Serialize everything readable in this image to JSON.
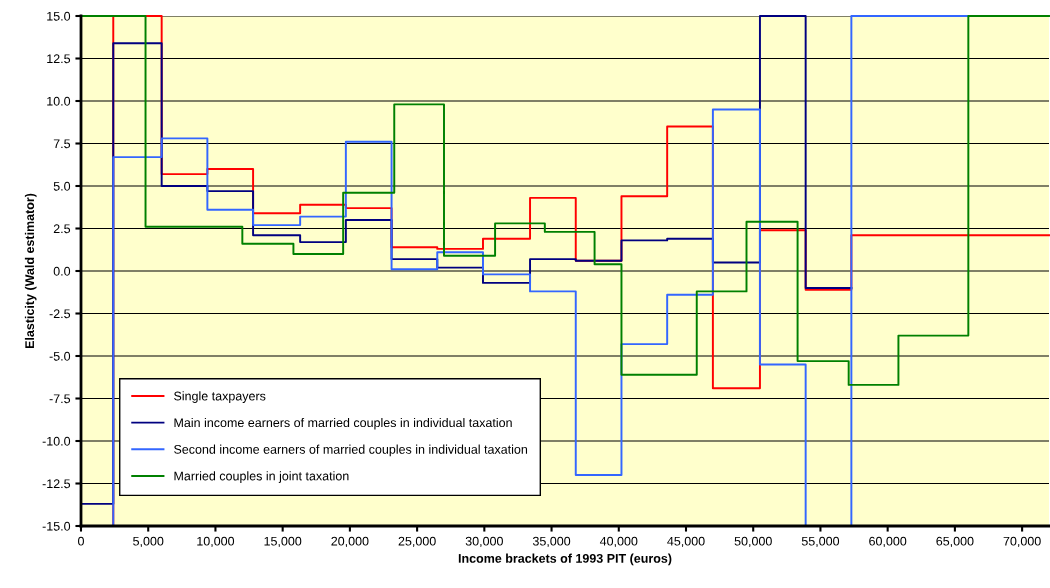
{
  "chart_data": {
    "type": "step",
    "xlabel": "Income brackets of 1993 PIT (euros)",
    "ylabel": "Elasticity (Wald estimator)",
    "series": [
      {
        "name": "Single taxpayers",
        "color": "#ff0000",
        "x": [
          0,
          2400,
          6000,
          9400,
          12800,
          16300,
          19700,
          23100,
          26500,
          29900,
          33400,
          36800,
          40200,
          43600,
          47000,
          50500,
          53900,
          57300,
          72000
        ],
        "values": [
          -15,
          15,
          5.7,
          6.0,
          3.4,
          3.9,
          3.7,
          1.4,
          1.3,
          1.9,
          4.3,
          0.6,
          4.4,
          8.5,
          -6.9,
          2.4,
          -1.1,
          2.1,
          2.1
        ]
      },
      {
        "name": "Main income earners of married couples in individual taxation",
        "color": "#000080",
        "x": [
          0,
          2400,
          6000,
          9400,
          12800,
          16300,
          19700,
          23100,
          26500,
          29900,
          33400,
          36800,
          40200,
          43600,
          47000,
          50500,
          53900,
          57300
        ],
        "values": [
          -13.7,
          13.4,
          5.0,
          4.7,
          2.1,
          1.7,
          3.0,
          0.7,
          0.2,
          -0.7,
          0.7,
          0.6,
          1.8,
          1.9,
          0.5,
          15,
          -1.0,
          -1.0
        ]
      },
      {
        "name": "Second income earners of married couples in individual taxation",
        "color": "#3366ff",
        "x": [
          0,
          2400,
          6000,
          9400,
          12800,
          16300,
          19700,
          23100,
          26500,
          29900,
          33400,
          36800,
          40200,
          43600,
          47000,
          50500,
          53900,
          57300,
          66000
        ],
        "values": [
          -15,
          6.7,
          7.8,
          3.6,
          2.7,
          3.2,
          7.6,
          0.1,
          1.1,
          -0.2,
          -1.2,
          -12.0,
          -4.3,
          -1.4,
          9.5,
          -5.5,
          -15,
          15,
          15
        ]
      },
      {
        "name": "Married couples in joint taxation",
        "color": "#008000",
        "x": [
          0,
          4800,
          12000,
          15800,
          19500,
          23300,
          27000,
          30800,
          34500,
          38200,
          40200,
          45800,
          49500,
          53300,
          57100,
          60800,
          66000,
          72000
        ],
        "values": [
          15,
          2.6,
          1.6,
          1.0,
          4.6,
          9.8,
          0.9,
          2.8,
          2.3,
          0.4,
          -6.1,
          -1.2,
          2.9,
          -5.3,
          -6.7,
          -3.8,
          15,
          15
        ]
      }
    ],
    "xlim": [
      0,
      72000
    ],
    "xticks": [
      0,
      {
        "value": 5000,
        "label": "5,000"
      },
      {
        "value": 10000,
        "label": "10,000"
      },
      {
        "value": 15000,
        "label": "15,000"
      },
      {
        "value": 20000,
        "label": "20,000"
      },
      {
        "value": 25000,
        "label": "25,000"
      },
      {
        "value": 30000,
        "label": "30,000"
      },
      {
        "value": 35000,
        "label": "35,000"
      },
      {
        "value": 40000,
        "label": "40,000"
      },
      {
        "value": 45000,
        "label": "45,000"
      },
      {
        "value": 50000,
        "label": "50,000"
      },
      {
        "value": 55000,
        "label": "55,000"
      },
      {
        "value": 60000,
        "label": "60,000"
      },
      {
        "value": 65000,
        "label": "65,000"
      },
      {
        "value": 70000,
        "label": "70,000"
      }
    ],
    "ylim": [
      -15,
      15
    ],
    "yticks": [
      {
        "value": -15,
        "label": "-15.0"
      },
      {
        "value": -12.5,
        "label": "-12.5"
      },
      {
        "value": -10,
        "label": "-10.0"
      },
      {
        "value": -7.5,
        "label": "-7.5"
      },
      {
        "value": -5,
        "label": "-5.0"
      },
      {
        "value": -2.5,
        "label": "-2.5"
      },
      {
        "value": 0,
        "label": "0.0"
      },
      {
        "value": 2.5,
        "label": "2.5"
      },
      {
        "value": 5,
        "label": "5.0"
      },
      {
        "value": 7.5,
        "label": "7.5"
      },
      {
        "value": 10,
        "label": "10.0"
      },
      {
        "value": 12.5,
        "label": "12.5"
      },
      {
        "value": 15,
        "label": "15.0"
      }
    ],
    "grid": "y",
    "legend": "bottom left",
    "line_style": "solid",
    "marker": "none"
  }
}
